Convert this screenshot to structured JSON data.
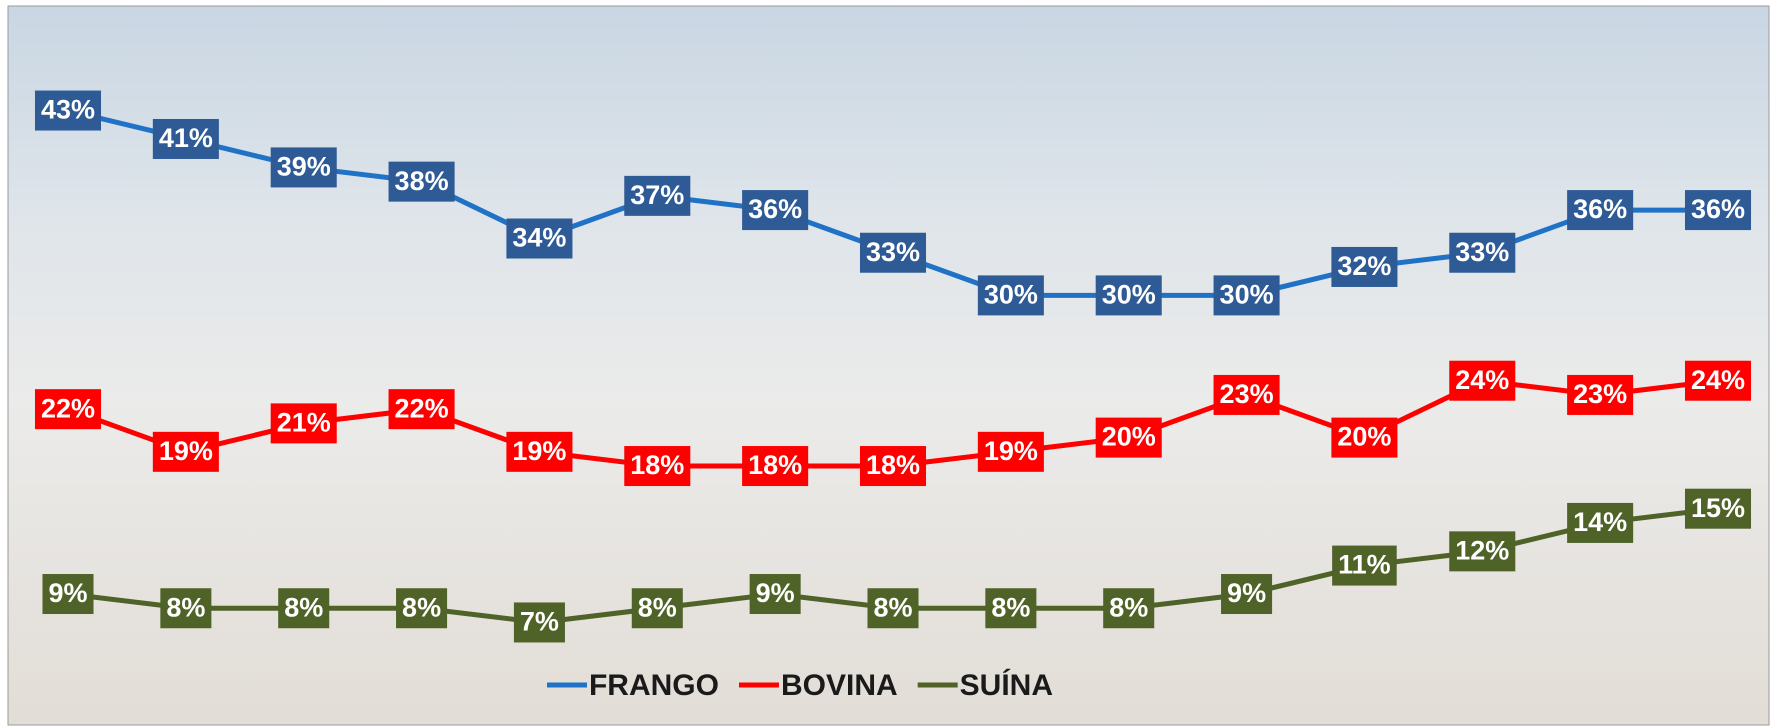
{
  "chart_data": {
    "type": "line",
    "categories": [
      null,
      null,
      null,
      null,
      null,
      null,
      null,
      null,
      null,
      null,
      null,
      null,
      null,
      null,
      null
    ],
    "ylim": [
      0,
      50
    ],
    "series": [
      {
        "name": "FRANGO",
        "color": "#1f72c6",
        "label_color": "#2e5b96",
        "values": [
          43,
          41,
          39,
          38,
          34,
          37,
          36,
          33,
          30,
          30,
          30,
          32,
          33,
          36,
          36
        ],
        "value_labels": [
          "43%",
          "41%",
          "39%",
          "38%",
          "34%",
          "37%",
          "36%",
          "33%",
          "30%",
          "30%",
          "30%",
          "32%",
          "33%",
          "36%",
          "36%"
        ]
      },
      {
        "name": "BOVINA",
        "color": "#ff0000",
        "label_color": "#ff0000",
        "values": [
          22,
          19,
          21,
          22,
          19,
          18,
          18,
          18,
          19,
          20,
          23,
          20,
          24,
          23,
          24
        ],
        "value_labels": [
          "22%",
          "19%",
          "21%",
          "22%",
          "19%",
          "18%",
          "18%",
          "18%",
          "19%",
          "20%",
          "23%",
          "20%",
          "24%",
          "23%",
          "24%"
        ]
      },
      {
        "name": "SUÍNA",
        "color": "#4f6228",
        "label_color": "#4f6228",
        "values": [
          9,
          8,
          8,
          8,
          7,
          8,
          9,
          8,
          8,
          8,
          9,
          11,
          12,
          14,
          15
        ],
        "value_labels": [
          "9%",
          "8%",
          "8%",
          "8%",
          "7%",
          "8%",
          "9%",
          "8%",
          "8%",
          "8%",
          "9%",
          "11%",
          "12%",
          "14%",
          "15%"
        ]
      }
    ],
    "legend": "bottom"
  }
}
